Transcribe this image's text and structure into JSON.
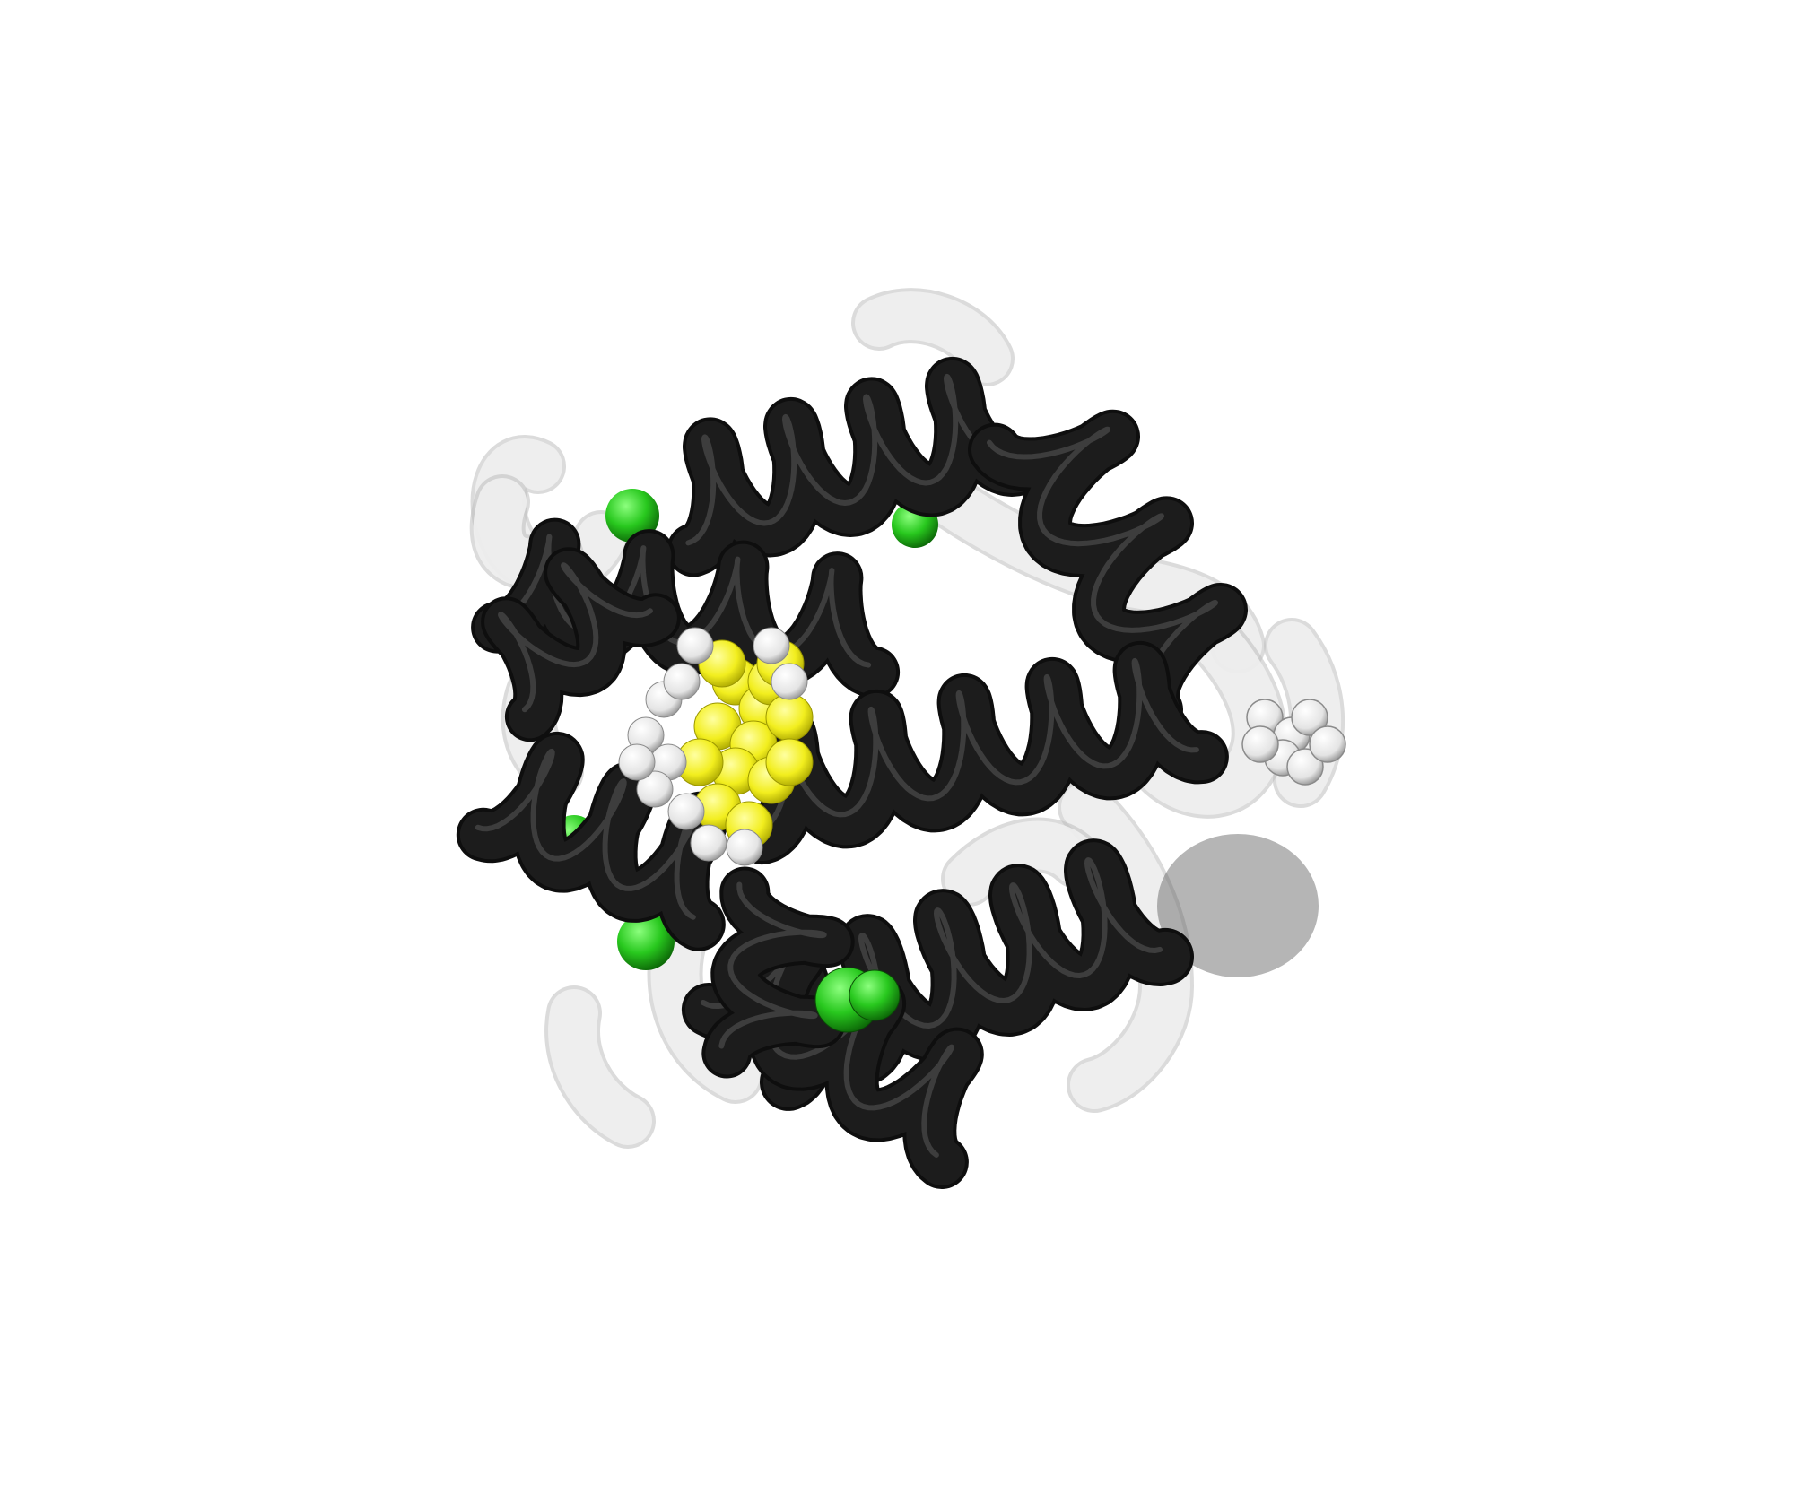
{
  "scene": {
    "background": "#ffffff",
    "subject": "protein-structure-rendering",
    "colors": {
      "helix_dark": "#1c1c1c",
      "helix_highlight": "#5a5a5a",
      "ghost_chain": "#efefef",
      "ghost_outline": "#bdbdbd",
      "ligand_yellow": "#f2ee1e",
      "ligand_white_atoms": "#f0f0f0",
      "ion_green": "#28c81e"
    }
  }
}
